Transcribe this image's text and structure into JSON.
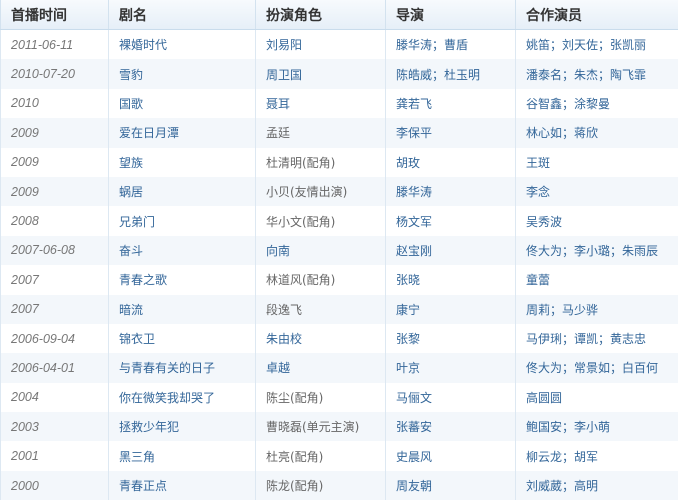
{
  "headers": [
    "首播时间",
    "剧名",
    "扮演角色",
    "导演",
    "合作演员"
  ],
  "colors": {
    "link": "#336699",
    "text": "#666666",
    "row_alt": "#f3f7fb"
  },
  "rows": [
    {
      "date": "2011-06-11",
      "title": "裸婚时代",
      "role": "刘易阳",
      "role_link": true,
      "director": "滕华涛；曹盾",
      "costars": "姚笛；刘天佐；张凯丽"
    },
    {
      "date": "2010-07-20",
      "title": "雪豹",
      "role": "周卫国",
      "role_link": true,
      "director": "陈皓威；杜玉明",
      "costars": "潘泰名；朱杰；陶飞霏"
    },
    {
      "date": "2010",
      "title": "国歌",
      "role": "聂耳",
      "role_link": true,
      "director": "龚若飞",
      "costars": "谷智鑫；涂黎曼"
    },
    {
      "date": "2009",
      "title": "爱在日月潭",
      "role": "孟廷",
      "role_link": false,
      "director": "李保平",
      "costars": "林心如；蒋欣"
    },
    {
      "date": "2009",
      "title": "望族",
      "role": "杜清明(配角)",
      "role_link": false,
      "director": "胡玫",
      "costars": "王斑"
    },
    {
      "date": "2009",
      "title": "蜗居",
      "role": "小贝(友情出演)",
      "role_link": false,
      "director": "滕华涛",
      "costars": "李念"
    },
    {
      "date": "2008",
      "title": "兄弟门",
      "role": "华小文(配角)",
      "role_link": false,
      "director": "杨文军",
      "costars": "吴秀波"
    },
    {
      "date": "2007-06-08",
      "title": "奋斗",
      "role": "向南",
      "role_link": true,
      "director": "赵宝刚",
      "costars": "佟大为；李小璐；朱雨辰"
    },
    {
      "date": "2007",
      "title": "青春之歌",
      "role": "林道风(配角)",
      "role_link": false,
      "director": "张晓",
      "costars": "童蕾"
    },
    {
      "date": "2007",
      "title": "暗流",
      "role": "段逸飞",
      "role_link": false,
      "director": "康宁",
      "costars": "周莉；马少骅"
    },
    {
      "date": "2006-09-04",
      "title": "锦衣卫",
      "role": "朱由校",
      "role_link": true,
      "director": "张黎",
      "costars": "马伊琍；谭凯；黄志忠"
    },
    {
      "date": "2006-04-01",
      "title": "与青春有关的日子",
      "role": "卓越",
      "role_link": true,
      "director": "叶京",
      "costars": "佟大为；常景如；白百何"
    },
    {
      "date": "2004",
      "title": "你在微笑我却哭了",
      "role": "陈尘(配角)",
      "role_link": false,
      "director": "马俪文",
      "costars": "高圆圆"
    },
    {
      "date": "2003",
      "title": "拯救少年犯",
      "role": "曹晓磊(单元主演)",
      "role_link": false,
      "director": "张蕃安",
      "costars": "鲍国安；李小萌"
    },
    {
      "date": "2001",
      "title": "黑三角",
      "role": "杜亮(配角)",
      "role_link": false,
      "director": "史晨风",
      "costars": "柳云龙；胡军"
    },
    {
      "date": "2000",
      "title": "青春正点",
      "role": "陈龙(配角)",
      "role_link": false,
      "director": "周友朝",
      "costars": "刘威葳；高明"
    }
  ]
}
